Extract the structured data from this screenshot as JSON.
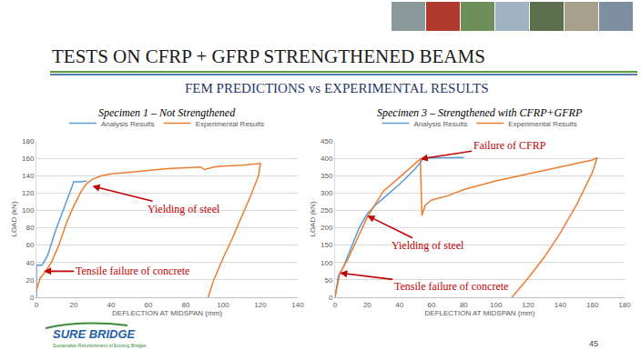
{
  "slide": {
    "title": "TESTS ON CFRP + GFRP STRENGTHENED BEAMS",
    "subtitle": "FEM PREDICTIONS vs EXPERIMENTAL RESULTS",
    "logo": "SURE BRIDGE",
    "logo_tagline": "Sustainable Refurbishment of Existing Bridges",
    "page": 45
  },
  "chart_data": [
    {
      "type": "line",
      "title": "Specimen 1 – Not Strengthened",
      "x_label": "DEFLECTION AT MIDSPAN (mm)",
      "y_label": "LOAD (kN)",
      "xlim": [
        0,
        140
      ],
      "xticks": [
        0,
        20,
        40,
        60,
        80,
        100,
        120,
        140
      ],
      "ylim": [
        0,
        180
      ],
      "yticks": [
        0,
        20,
        40,
        60,
        80,
        100,
        120,
        140,
        160,
        180
      ],
      "grid": true,
      "legend": "top",
      "series": [
        {
          "name": "Analysis Results",
          "color": "#5B9BD5",
          "x": [
            0,
            0,
            3,
            6,
            10,
            15,
            20,
            24,
            27
          ],
          "values": [
            0,
            37,
            37,
            48,
            75,
            105,
            133,
            133,
            134
          ]
        },
        {
          "name": "Experimental Results",
          "color": "#ED7D31",
          "x": [
            0,
            2,
            5,
            8,
            12,
            16,
            20,
            24,
            27,
            30,
            35,
            40,
            50,
            60,
            70,
            80,
            88,
            90,
            95,
            100,
            110,
            120,
            119,
            115,
            110,
            105,
            100,
            95,
            92
          ],
          "values": [
            8,
            22,
            30,
            40,
            60,
            85,
            105,
            122,
            131,
            136,
            140,
            142,
            144,
            146,
            148,
            149,
            150,
            147,
            150,
            151,
            152,
            154,
            140,
            118,
            92,
            68,
            45,
            20,
            0
          ]
        }
      ],
      "annotations": [
        {
          "text": "Yielding of steel",
          "x": 30,
          "y": 128
        },
        {
          "text": "Tensile failure of concrete",
          "x": 4,
          "y": 30
        }
      ]
    },
    {
      "type": "line",
      "title": "Specimen 3 – Strengthened with CFRP+GFRP",
      "x_label": "DEFLECTION AT MIDSPAN (mm)",
      "y_label": "LOAD (kN)",
      "xlim": [
        0,
        180
      ],
      "xticks": [
        0,
        20,
        40,
        60,
        80,
        100,
        120,
        140,
        160,
        180
      ],
      "ylim": [
        0,
        450
      ],
      "yticks": [
        0,
        50,
        100,
        150,
        200,
        250,
        300,
        350,
        400,
        450
      ],
      "grid": true,
      "legend": "top",
      "series": [
        {
          "name": "Analysis Results",
          "color": "#5B9BD5",
          "x": [
            0,
            2,
            5,
            10,
            15,
            20,
            25,
            30,
            40,
            50,
            55,
            60,
            80
          ],
          "values": [
            0,
            60,
            85,
            140,
            200,
            240,
            265,
            285,
            325,
            370,
            400,
            401,
            402
          ]
        },
        {
          "name": "Experimental Results",
          "color": "#ED7D31",
          "x": [
            0,
            3,
            8,
            15,
            20,
            25,
            30,
            40,
            50,
            53,
            54,
            56,
            60,
            70,
            80,
            100,
            120,
            140,
            160,
            163,
            160,
            150,
            140,
            130,
            120,
            110
          ],
          "values": [
            0,
            70,
            110,
            180,
            230,
            268,
            305,
            345,
            385,
            398,
            235,
            265,
            280,
            292,
            310,
            335,
            355,
            375,
            395,
            402,
            360,
            265,
            185,
            115,
            55,
            0
          ]
        }
      ],
      "annotations": [
        {
          "text": "Failure of CFRP",
          "x": 53,
          "y": 398
        },
        {
          "text": "Yielding of steel",
          "x": 20,
          "y": 235
        },
        {
          "text": "Tensile failure of concrete",
          "x": 3,
          "y": 70
        }
      ]
    }
  ]
}
